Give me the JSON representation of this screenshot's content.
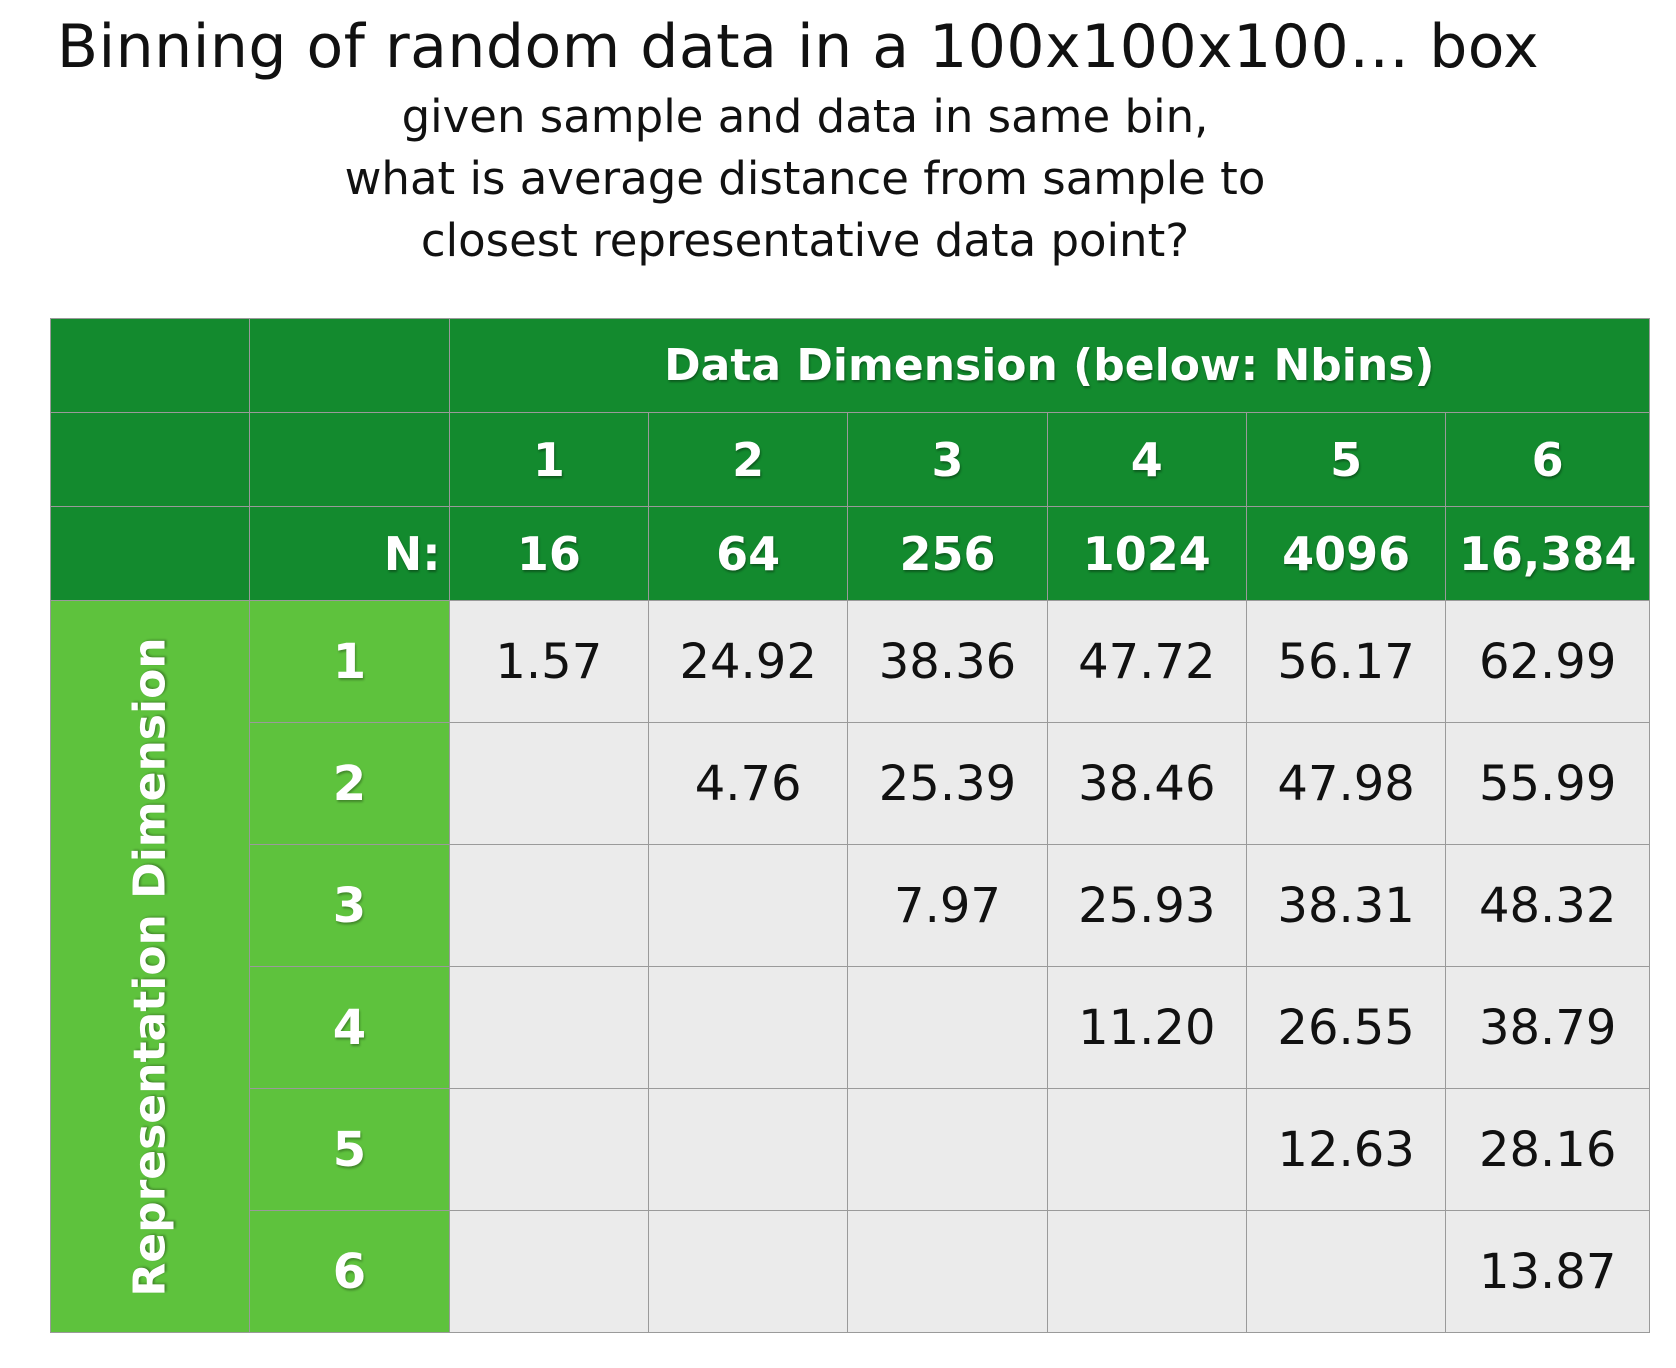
{
  "title": "Binning of random data in a 100x100x100… box",
  "subtitle_lines": [
    "given sample and data in same bin,",
    "what is average distance from sample to",
    "closest representative data point?"
  ],
  "table": {
    "column_group_header": "Data Dimension (below: Nbins)",
    "row_group_header": "Representation Dimension",
    "n_label": "N:",
    "columns": [
      "1",
      "2",
      "3",
      "4",
      "5",
      "6"
    ],
    "n_values": [
      "16",
      "64",
      "256",
      "1024",
      "4096",
      "16,384"
    ],
    "rows": [
      {
        "label": "1",
        "cells": [
          "1.57",
          "24.92",
          "38.36",
          "47.72",
          "56.17",
          "62.99"
        ]
      },
      {
        "label": "2",
        "cells": [
          "",
          "4.76",
          "25.39",
          "38.46",
          "47.98",
          "55.99"
        ]
      },
      {
        "label": "3",
        "cells": [
          "",
          "",
          "7.97",
          "25.93",
          "38.31",
          "48.32"
        ]
      },
      {
        "label": "4",
        "cells": [
          "",
          "",
          "",
          "11.20",
          "26.55",
          "38.79"
        ]
      },
      {
        "label": "5",
        "cells": [
          "",
          "",
          "",
          "",
          "12.63",
          "28.16"
        ]
      },
      {
        "label": "6",
        "cells": [
          "",
          "",
          "",
          "",
          "",
          "13.87"
        ]
      }
    ]
  },
  "colors": {
    "header_green": "#138a2e",
    "row_label_green": "#5ec23d",
    "cell_gray": "#ebebeb"
  },
  "chart_data": {
    "type": "table",
    "title": "Binning of random data in a 100x100x100… box",
    "subtitle": "given sample and data in same bin, what is average distance from sample to closest representative data point?",
    "column_header": "Data Dimension (below: Nbins)",
    "row_header": "Representation Dimension",
    "data_dimensions": [
      1,
      2,
      3,
      4,
      5,
      6
    ],
    "nbins": [
      16,
      64,
      256,
      1024,
      4096,
      16384
    ],
    "representation_dimensions": [
      1,
      2,
      3,
      4,
      5,
      6
    ],
    "values": [
      [
        1.57,
        24.92,
        38.36,
        47.72,
        56.17,
        62.99
      ],
      [
        null,
        4.76,
        25.39,
        38.46,
        47.98,
        55.99
      ],
      [
        null,
        null,
        7.97,
        25.93,
        38.31,
        48.32
      ],
      [
        null,
        null,
        null,
        11.2,
        26.55,
        38.79
      ],
      [
        null,
        null,
        null,
        null,
        12.63,
        28.16
      ],
      [
        null,
        null,
        null,
        null,
        null,
        13.87
      ]
    ]
  }
}
